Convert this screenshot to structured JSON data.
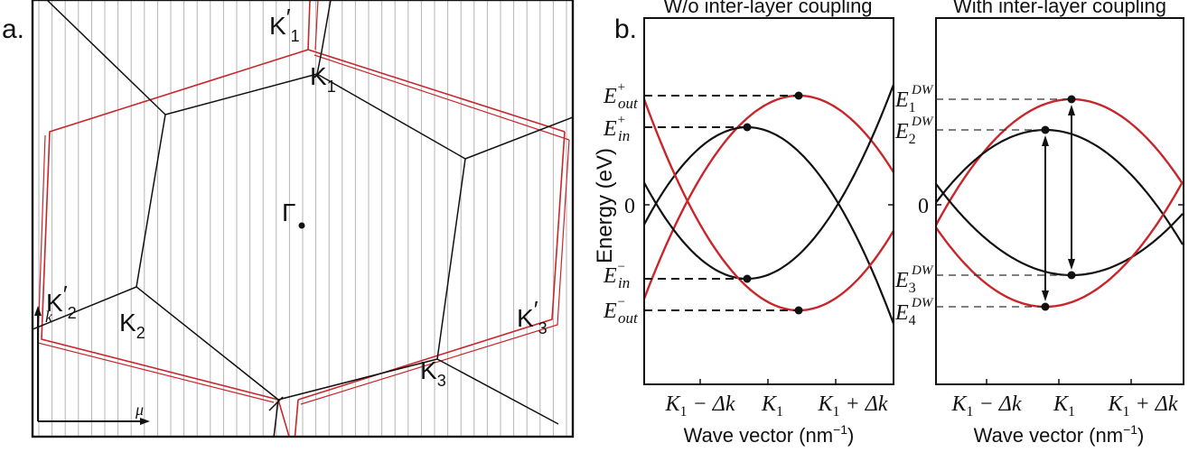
{
  "panel_a": {
    "label": "a.",
    "gamma": "Γ",
    "k_points": {
      "K1p": {
        "base": "K",
        "sub": "1",
        "prime": "′"
      },
      "K1": {
        "base": "K",
        "sub": "1"
      },
      "K2p": {
        "base": "K",
        "sub": "2",
        "prime": "′"
      },
      "K2": {
        "base": "K",
        "sub": "2"
      },
      "K3": {
        "base": "K",
        "sub": "3"
      },
      "K3p": {
        "base": "K",
        "sub": "3",
        "prime": "′"
      }
    },
    "axes": {
      "k": "k",
      "mu": "μ"
    }
  },
  "panel_b": {
    "label": "b.",
    "left_title": "W/o inter-layer coupling",
    "right_title": "With inter-layer coupling",
    "ylabel": "Energy (eV)",
    "xlabel_parts": {
      "pre": "Wave vector (nm",
      "sup": "−1",
      "post": ")"
    },
    "zero_tick": "0",
    "xticks": [
      {
        "base": "K",
        "sub": "1",
        "suffix": " − Δk"
      },
      {
        "base": "K",
        "sub": "1",
        "suffix": ""
      },
      {
        "base": "K",
        "sub": "1",
        "suffix": " + Δk"
      }
    ],
    "left_levels": {
      "E_out_plus": {
        "base": "E",
        "sup": "+",
        "sub": "out"
      },
      "E_in_plus": {
        "base": "E",
        "sup": "+",
        "sub": "in"
      },
      "E_in_minus": {
        "base": "E",
        "sup": "−",
        "sub": "in"
      },
      "E_out_minus": {
        "base": "E",
        "sup": "−",
        "sub": "out"
      }
    },
    "right_levels": {
      "E1": {
        "base": "E",
        "sup": "DW",
        "sub": "1"
      },
      "E2": {
        "base": "E",
        "sup": "DW",
        "sub": "2"
      },
      "E3": {
        "base": "E",
        "sup": "DW",
        "sub": "3"
      },
      "E4": {
        "base": "E",
        "sup": "DW",
        "sub": "4"
      }
    }
  },
  "colors": {
    "red": "#c8262a",
    "black": "#111111",
    "grid": "#b5b5b5"
  }
}
